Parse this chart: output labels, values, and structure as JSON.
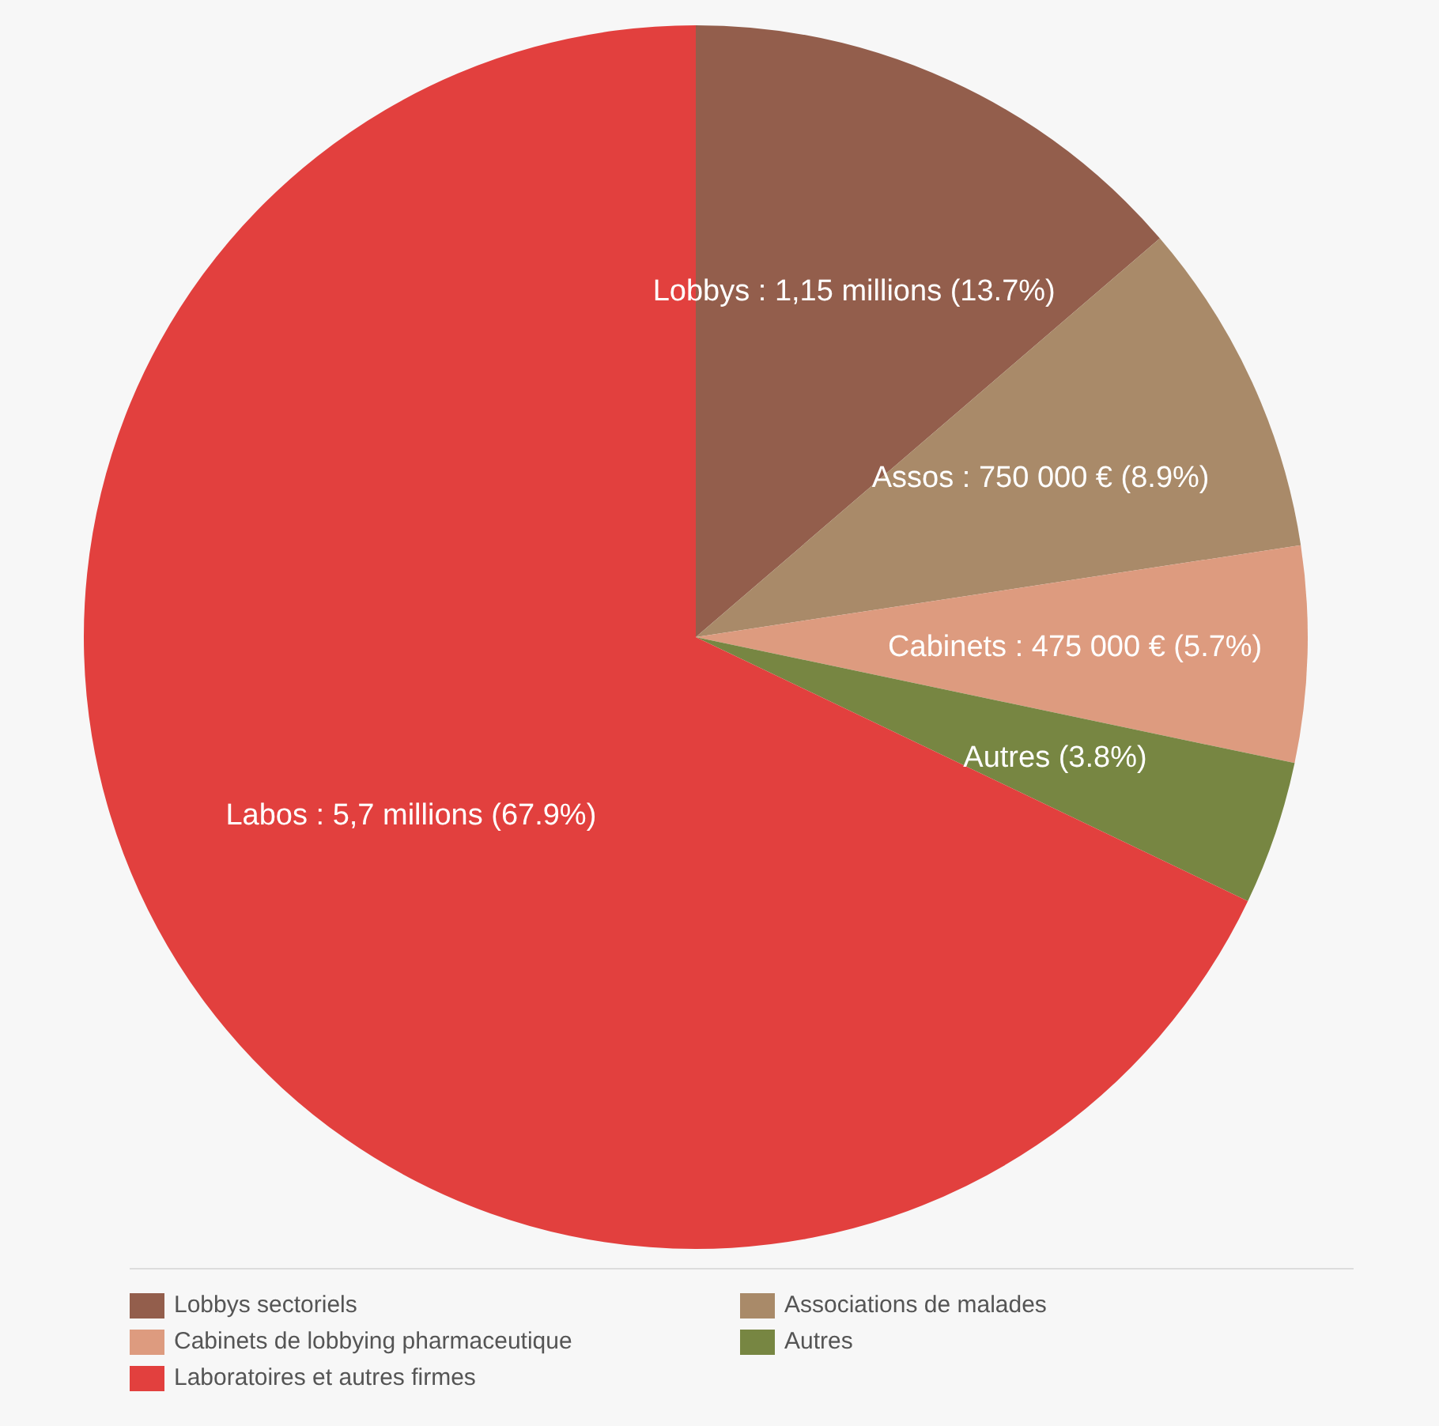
{
  "chart_data": {
    "type": "pie",
    "categories": [
      "Lobbys sectoriels",
      "Associations de malades",
      "Cabinets de lobbying pharmaceutique",
      "Autres",
      "Laboratoires et autres firmes"
    ],
    "values": [
      13.7,
      8.9,
      5.7,
      3.8,
      67.9
    ],
    "colors": [
      "#935e4c",
      "#a98a69",
      "#dd9b7f",
      "#778642",
      "#e2403e"
    ],
    "value_labels": [
      "Lobbys : 1,15 millions (13.7%)",
      "Assos : 750 000 € (8.9%)",
      "Cabinets : 475 000 € (5.7%)",
      "Autres (3.8%)",
      "Labos : 5,7 millions (67.9%)"
    ],
    "legend": "bottom"
  }
}
